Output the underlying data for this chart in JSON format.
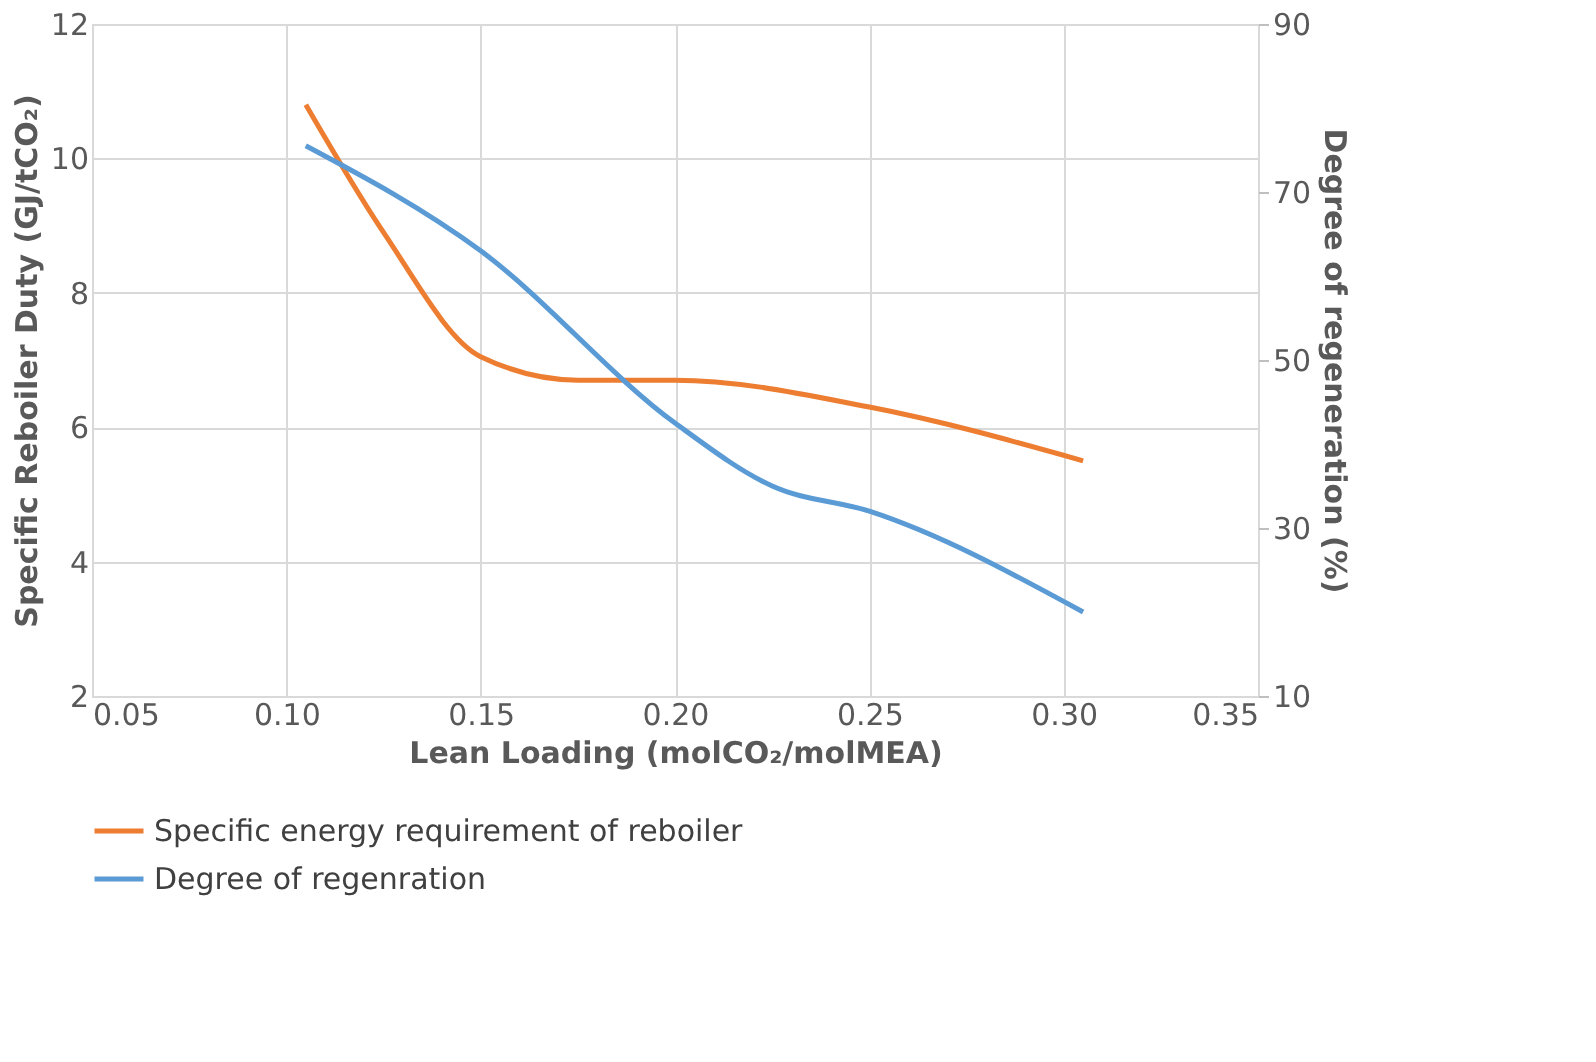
{
  "chart_data": {
    "type": "line",
    "xlabel": "Lean Loading (molCO₂/molMEA)",
    "ylabel": "Specific Reboiler Duty (GJ/tCO₂)",
    "y2label": "Degree of regeneration (%)",
    "xlim": [
      0.05,
      0.35
    ],
    "xticks": [
      {
        "value": 0.05,
        "label": "0.05"
      },
      {
        "value": 0.1,
        "label": "0.10"
      },
      {
        "value": 0.15,
        "label": "0.15"
      },
      {
        "value": 0.2,
        "label": "0.20"
      },
      {
        "value": 0.25,
        "label": "0.25"
      },
      {
        "value": 0.3,
        "label": "0.30"
      },
      {
        "value": 0.35,
        "label": "0.35"
      }
    ],
    "ylim": [
      2,
      12
    ],
    "yticks": [
      2,
      4,
      6,
      8,
      10,
      12
    ],
    "y2lim": [
      10,
      90
    ],
    "y2ticks": [
      10,
      30,
      50,
      70,
      90
    ],
    "grid": true,
    "legend": "bottom",
    "marker": "none",
    "line_style": "solid",
    "series": [
      {
        "name": "Specific energy requirement of reboiler",
        "color": "#ed7d31",
        "x": [
          0.105,
          0.125,
          0.15,
          0.175,
          0.2,
          0.25,
          0.305
        ],
        "values": [
          10.8,
          8.9,
          7.05,
          6.7,
          6.7,
          6.3,
          5.5
        ]
      },
      {
        "name": "Degree of regenration",
        "color": "#5b9bd5",
        "axis": "y2",
        "x": [
          0.105,
          0.15,
          0.2,
          0.225,
          0.25,
          0.305
        ],
        "values": [
          75.5,
          63,
          42.5,
          35,
          32,
          20
        ]
      }
    ]
  }
}
